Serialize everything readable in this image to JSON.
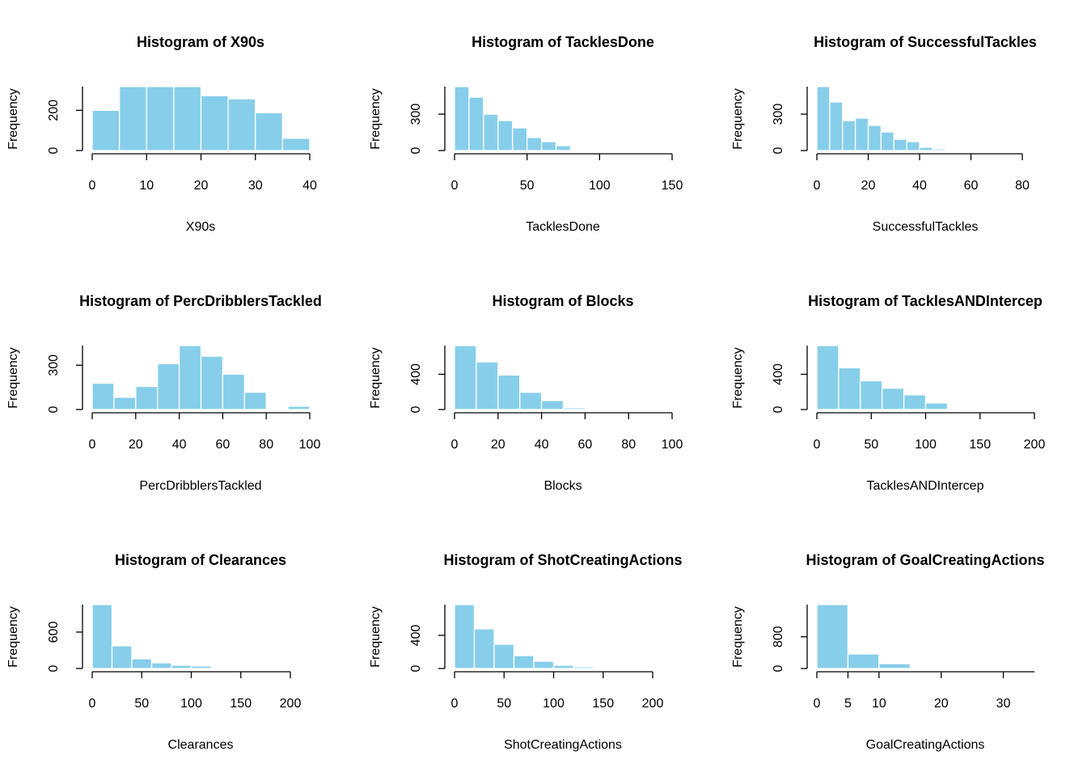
{
  "chart_data": [
    {
      "type": "histogram",
      "title": "Histogram of X90s",
      "xlabel": "X90s",
      "ylabel": "Frequency",
      "color": "#87ceeb",
      "bins": [
        0,
        5,
        10,
        15,
        20,
        25,
        30,
        35,
        40
      ],
      "values": [
        200,
        318,
        318,
        318,
        273,
        257,
        188,
        61
      ],
      "xlim": [
        0,
        40
      ],
      "xticks": [
        0,
        10,
        20,
        30,
        40
      ],
      "ylim": [
        0,
        318
      ],
      "yticks": [
        0,
        200
      ]
    },
    {
      "type": "histogram",
      "title": "Histogram of TacklesDone",
      "xlabel": "TacklesDone",
      "ylabel": "Frequency",
      "color": "#87ceeb",
      "bins": [
        0,
        10,
        20,
        30,
        40,
        50,
        60,
        70,
        80,
        90
      ],
      "values": [
        527,
        440,
        300,
        247,
        187,
        107,
        73,
        40,
        7
      ],
      "xlim": [
        0,
        150
      ],
      "xticks": [
        0,
        50,
        100,
        150
      ],
      "ylim": [
        0,
        527
      ],
      "yticks": [
        0,
        300
      ]
    },
    {
      "type": "histogram",
      "title": "Histogram of SuccessfulTackles",
      "xlabel": "SuccessfulTackles",
      "ylabel": "Frequency",
      "color": "#87ceeb",
      "bins": [
        0,
        5,
        10,
        15,
        20,
        25,
        30,
        35,
        40,
        45,
        50
      ],
      "values": [
        527,
        400,
        247,
        267,
        207,
        153,
        93,
        73,
        27,
        13
      ],
      "xlim": [
        0,
        80
      ],
      "xticks": [
        0,
        20,
        40,
        60,
        80
      ],
      "ylim": [
        0,
        527
      ],
      "yticks": [
        0,
        300
      ]
    },
    {
      "type": "histogram",
      "title": "Histogram of PercDribblersTackled",
      "xlabel": "PercDribblersTackled",
      "ylabel": "Frequency",
      "color": "#87ceeb",
      "bins": [
        0,
        10,
        20,
        30,
        40,
        50,
        60,
        70,
        80,
        90,
        100
      ],
      "values": [
        178,
        83,
        156,
        311,
        433,
        361,
        239,
        117,
        0,
        22
      ],
      "xlim": [
        0,
        100
      ],
      "xticks": [
        0,
        20,
        40,
        60,
        80,
        100
      ],
      "ylim": [
        0,
        433
      ],
      "yticks": [
        0,
        300
      ]
    },
    {
      "type": "histogram",
      "title": "Histogram of Blocks",
      "xlabel": "Blocks",
      "ylabel": "Frequency",
      "color": "#87ceeb",
      "bins": [
        0,
        10,
        20,
        30,
        40,
        50,
        60,
        70
      ],
      "values": [
        726,
        540,
        391,
        195,
        102,
        19,
        3
      ],
      "xlim": [
        0,
        100
      ],
      "xticks": [
        0,
        20,
        40,
        60,
        80,
        100
      ],
      "ylim": [
        0,
        726
      ],
      "yticks": [
        0,
        400
      ]
    },
    {
      "type": "histogram",
      "title": "Histogram of TacklesANDIntercep",
      "xlabel": "TacklesANDIntercep",
      "ylabel": "Frequency",
      "color": "#87ceeb",
      "bins": [
        0,
        20,
        40,
        60,
        80,
        100,
        120,
        140
      ],
      "values": [
        726,
        474,
        326,
        242,
        167,
        74,
        9
      ],
      "xlim": [
        0,
        200
      ],
      "xticks": [
        0,
        50,
        100,
        150,
        200
      ],
      "ylim": [
        0,
        726
      ],
      "yticks": [
        0,
        400
      ]
    },
    {
      "type": "histogram",
      "title": "Histogram of Clearances",
      "xlabel": "Clearances",
      "ylabel": "Frequency",
      "color": "#87ceeb",
      "bins": [
        0,
        20,
        40,
        60,
        80,
        100,
        120
      ],
      "values": [
        1053,
        373,
        160,
        93,
        53,
        40
      ],
      "xlim": [
        0,
        200
      ],
      "xticks": [
        0,
        50,
        100,
        150,
        200
      ],
      "ylim": [
        0,
        1053
      ],
      "yticks": [
        0,
        600
      ]
    },
    {
      "type": "histogram",
      "title": "Histogram of ShotCreatingActions",
      "xlabel": "ShotCreatingActions",
      "ylabel": "Frequency",
      "color": "#87ceeb",
      "bins": [
        0,
        20,
        40,
        60,
        80,
        100,
        120,
        140
      ],
      "values": [
        771,
        478,
        293,
        156,
        88,
        39,
        20
      ],
      "xlim": [
        0,
        200
      ],
      "xticks": [
        0,
        50,
        100,
        150,
        200
      ],
      "ylim": [
        0,
        771
      ],
      "yticks": [
        0,
        400
      ]
    },
    {
      "type": "histogram",
      "title": "Histogram of GoalCreatingActions",
      "xlabel": "GoalCreatingActions",
      "ylabel": "Frequency",
      "color": "#87ceeb",
      "bins": [
        0,
        5,
        10,
        15
      ],
      "values": [
        1612,
        367,
        122
      ],
      "xlim": [
        0,
        35
      ],
      "xticks": [
        0,
        5,
        10,
        20,
        30
      ],
      "ylim": [
        0,
        1612
      ],
      "yticks": [
        0,
        800
      ]
    }
  ]
}
